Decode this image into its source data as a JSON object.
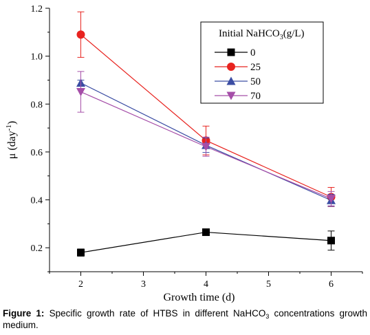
{
  "caption": {
    "label": "Figure 1:",
    "text_before": "Specific growth rate of HTBS in different NaHCO",
    "sub": "3",
    "text_after": "concentrations growth medium."
  },
  "chart_data": {
    "type": "line",
    "xlabel": "Growth time (d)",
    "ylabel": {
      "main": "μ (day",
      "sup": "-1",
      "close": ")"
    },
    "xlim": [
      1.5,
      6.5
    ],
    "ylim": [
      0.1,
      1.2
    ],
    "xticks": [
      2,
      3,
      4,
      5,
      6
    ],
    "yticks": [
      0.2,
      0.4,
      0.6,
      0.8,
      1.0,
      1.2
    ],
    "ytick_labels": [
      "0.2",
      "0.4",
      "0.6",
      "0.8",
      "1.0",
      "1.2"
    ],
    "grid": false,
    "legend": {
      "title_main": "Initial NaHCO",
      "title_sub": "3",
      "title_end": "(g/L)",
      "placement": "top-right"
    },
    "x": [
      2,
      4,
      6
    ],
    "series": [
      {
        "name": "0",
        "color": "#000000",
        "marker": "square",
        "values": [
          0.18,
          0.265,
          0.23
        ],
        "errors": [
          0.015,
          0.008,
          0.04
        ]
      },
      {
        "name": "25",
        "color": "#e8231f",
        "marker": "circle",
        "values": [
          1.09,
          0.648,
          0.412
        ],
        "errors": [
          0.095,
          0.06,
          0.04
        ]
      },
      {
        "name": "50",
        "color": "#3b4da3",
        "marker": "triangle-up",
        "values": [
          0.888,
          0.628,
          0.398
        ],
        "errors": [
          0.012,
          0.03,
          0.025
        ]
      },
      {
        "name": "70",
        "color": "#a54ea8",
        "marker": "triangle-down",
        "values": [
          0.851,
          0.622,
          0.405
        ],
        "errors": [
          0.085,
          0.04,
          0.03
        ]
      }
    ]
  }
}
